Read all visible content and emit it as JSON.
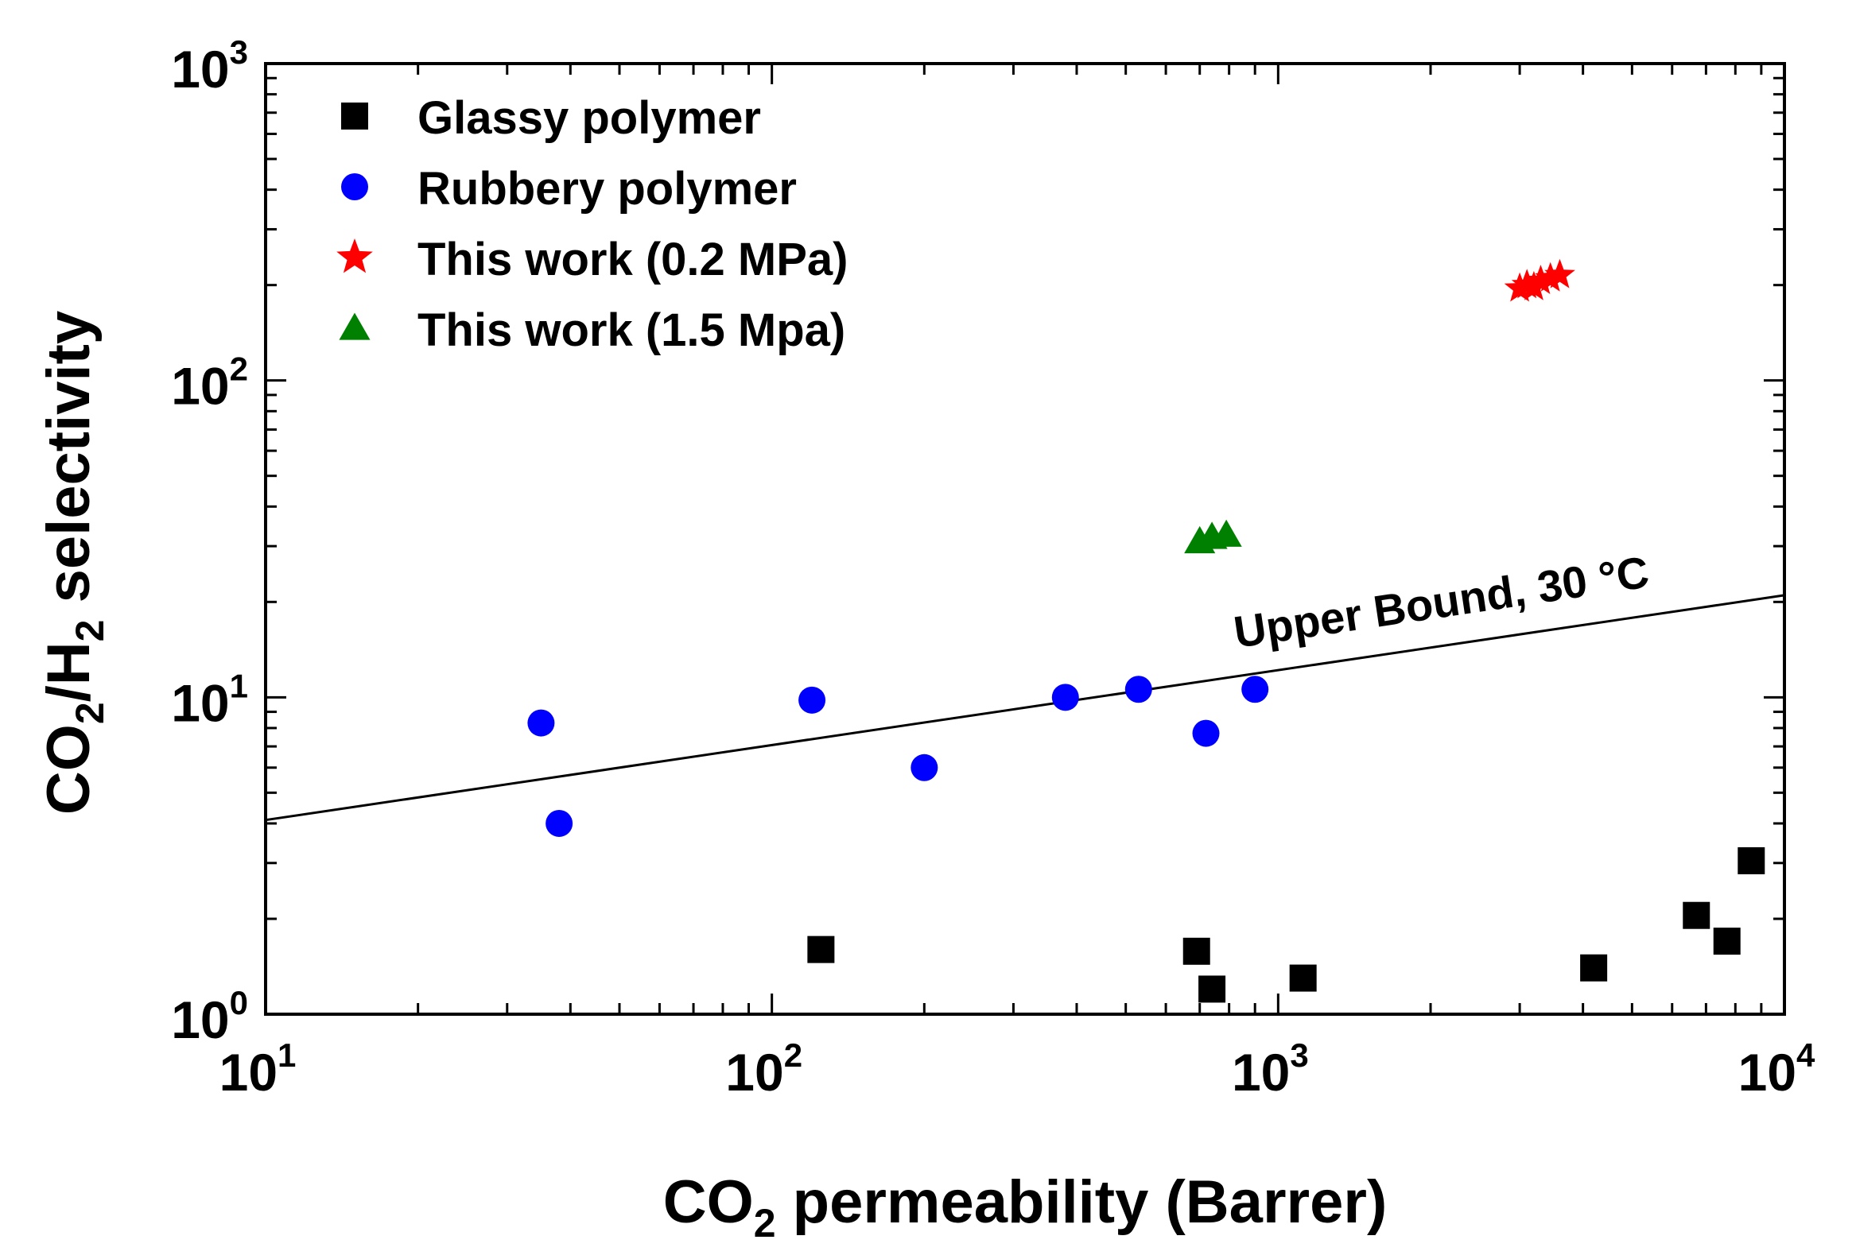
{
  "chart_data": {
    "type": "scatter",
    "title": "",
    "xlabel": "CO2 permeability (Barrer)",
    "ylabel": "CO2/H2 selectivity",
    "xscale": "log",
    "yscale": "log",
    "xlim": [
      10,
      10000
    ],
    "ylim": [
      1,
      1000
    ],
    "x_ticks": [
      {
        "base": "10",
        "exp": "1",
        "value": 10
      },
      {
        "base": "10",
        "exp": "2",
        "value": 100
      },
      {
        "base": "10",
        "exp": "3",
        "value": 1000
      },
      {
        "base": "10",
        "exp": "4",
        "value": 10000
      }
    ],
    "y_ticks": [
      {
        "base": "10",
        "exp": "0",
        "value": 1
      },
      {
        "base": "10",
        "exp": "1",
        "value": 10
      },
      {
        "base": "10",
        "exp": "2",
        "value": 100
      },
      {
        "base": "10",
        "exp": "3",
        "value": 1000
      }
    ],
    "axis_labels": {
      "x": {
        "pre": "CO",
        "sub": "2",
        "post": " permeability (Barrer)"
      },
      "y": {
        "pre": "CO",
        "sub1": "2",
        "mid": "/H",
        "sub2": "2",
        "post": " selectivity"
      }
    },
    "legend_placement": "top-left",
    "grid": false,
    "series": [
      {
        "name": "Glassy polymer",
        "marker": "square",
        "color": "#000000",
        "points": [
          {
            "x": 125,
            "y": 1.6
          },
          {
            "x": 690,
            "y": 1.58
          },
          {
            "x": 740,
            "y": 1.2
          },
          {
            "x": 1120,
            "y": 1.3
          },
          {
            "x": 4200,
            "y": 1.4
          },
          {
            "x": 6700,
            "y": 2.05
          },
          {
            "x": 7700,
            "y": 1.7
          },
          {
            "x": 8600,
            "y": 3.05
          }
        ]
      },
      {
        "name": "Rubbery polymer",
        "marker": "circle",
        "color": "#0000ff",
        "points": [
          {
            "x": 35,
            "y": 8.3
          },
          {
            "x": 38,
            "y": 4.0
          },
          {
            "x": 120,
            "y": 9.8
          },
          {
            "x": 200,
            "y": 6.0
          },
          {
            "x": 380,
            "y": 10.0
          },
          {
            "x": 530,
            "y": 10.6
          },
          {
            "x": 720,
            "y": 7.7
          },
          {
            "x": 900,
            "y": 10.6
          }
        ]
      },
      {
        "name": "This work (0.2 MPa)",
        "marker": "star",
        "color": "#ff0000",
        "points": [
          {
            "x": 3000,
            "y": 195
          },
          {
            "x": 3100,
            "y": 200
          },
          {
            "x": 3200,
            "y": 197
          },
          {
            "x": 3300,
            "y": 206
          },
          {
            "x": 3450,
            "y": 210
          },
          {
            "x": 3600,
            "y": 215
          }
        ]
      },
      {
        "name": "This work (1.5 Mpa)",
        "marker": "triangle",
        "color": "#008000",
        "points": [
          {
            "x": 700,
            "y": 31
          },
          {
            "x": 740,
            "y": 32
          },
          {
            "x": 790,
            "y": 32.5
          }
        ]
      }
    ],
    "upper_bound": {
      "label": "Upper Bound, 30 °C",
      "points": [
        {
          "x": 10,
          "y": 4.1
        },
        {
          "x": 10000,
          "y": 21
        }
      ]
    }
  }
}
